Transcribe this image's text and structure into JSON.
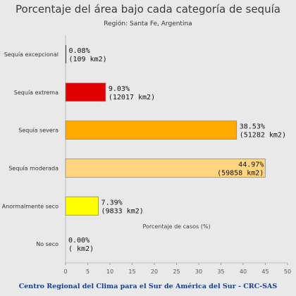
{
  "header": {
    "title": "Porcentaje del área bajo cada categoría de sequía",
    "subtitle": "Región: Santa Fe, Argentina"
  },
  "footer": "Centro Regional del Clima para el Sur de América del Sur - CRC-SAS",
  "chart_data": {
    "type": "bar",
    "orientation": "horizontal",
    "title": "Porcentaje del área bajo cada categoría de sequía",
    "subtitle": "Región: Santa Fe, Argentina",
    "xlabel": "Porcentaje de casos (%)",
    "ylabel": "",
    "xlim": [
      0,
      50
    ],
    "xticks": [
      "0",
      "5",
      "10",
      "15",
      "20",
      "25",
      "30",
      "35",
      "40",
      "45",
      "50"
    ],
    "grid": false,
    "categories": [
      "Sequía excepcional",
      "Sequía extrema",
      "Sequía severa",
      "Sequía moderada",
      "Anormalmente seco",
      "No seco"
    ],
    "values": [
      0.08,
      9.03,
      38.53,
      44.97,
      7.39,
      0.0
    ],
    "value_labels": [
      "0.08%",
      "9.03%",
      "38.53%",
      "44.97%",
      "7.39%",
      "0.00%"
    ],
    "area_labels": [
      "(109 km2)",
      "(12017 km2)",
      "(51282 km2)",
      "(59858 km2)",
      "(9833 km2)",
      "( km2)"
    ],
    "colors": [
      "#7a1a00",
      "#e00000",
      "#ffaa00",
      "#ffd580",
      "#ffff00",
      "#ffffff"
    ]
  }
}
